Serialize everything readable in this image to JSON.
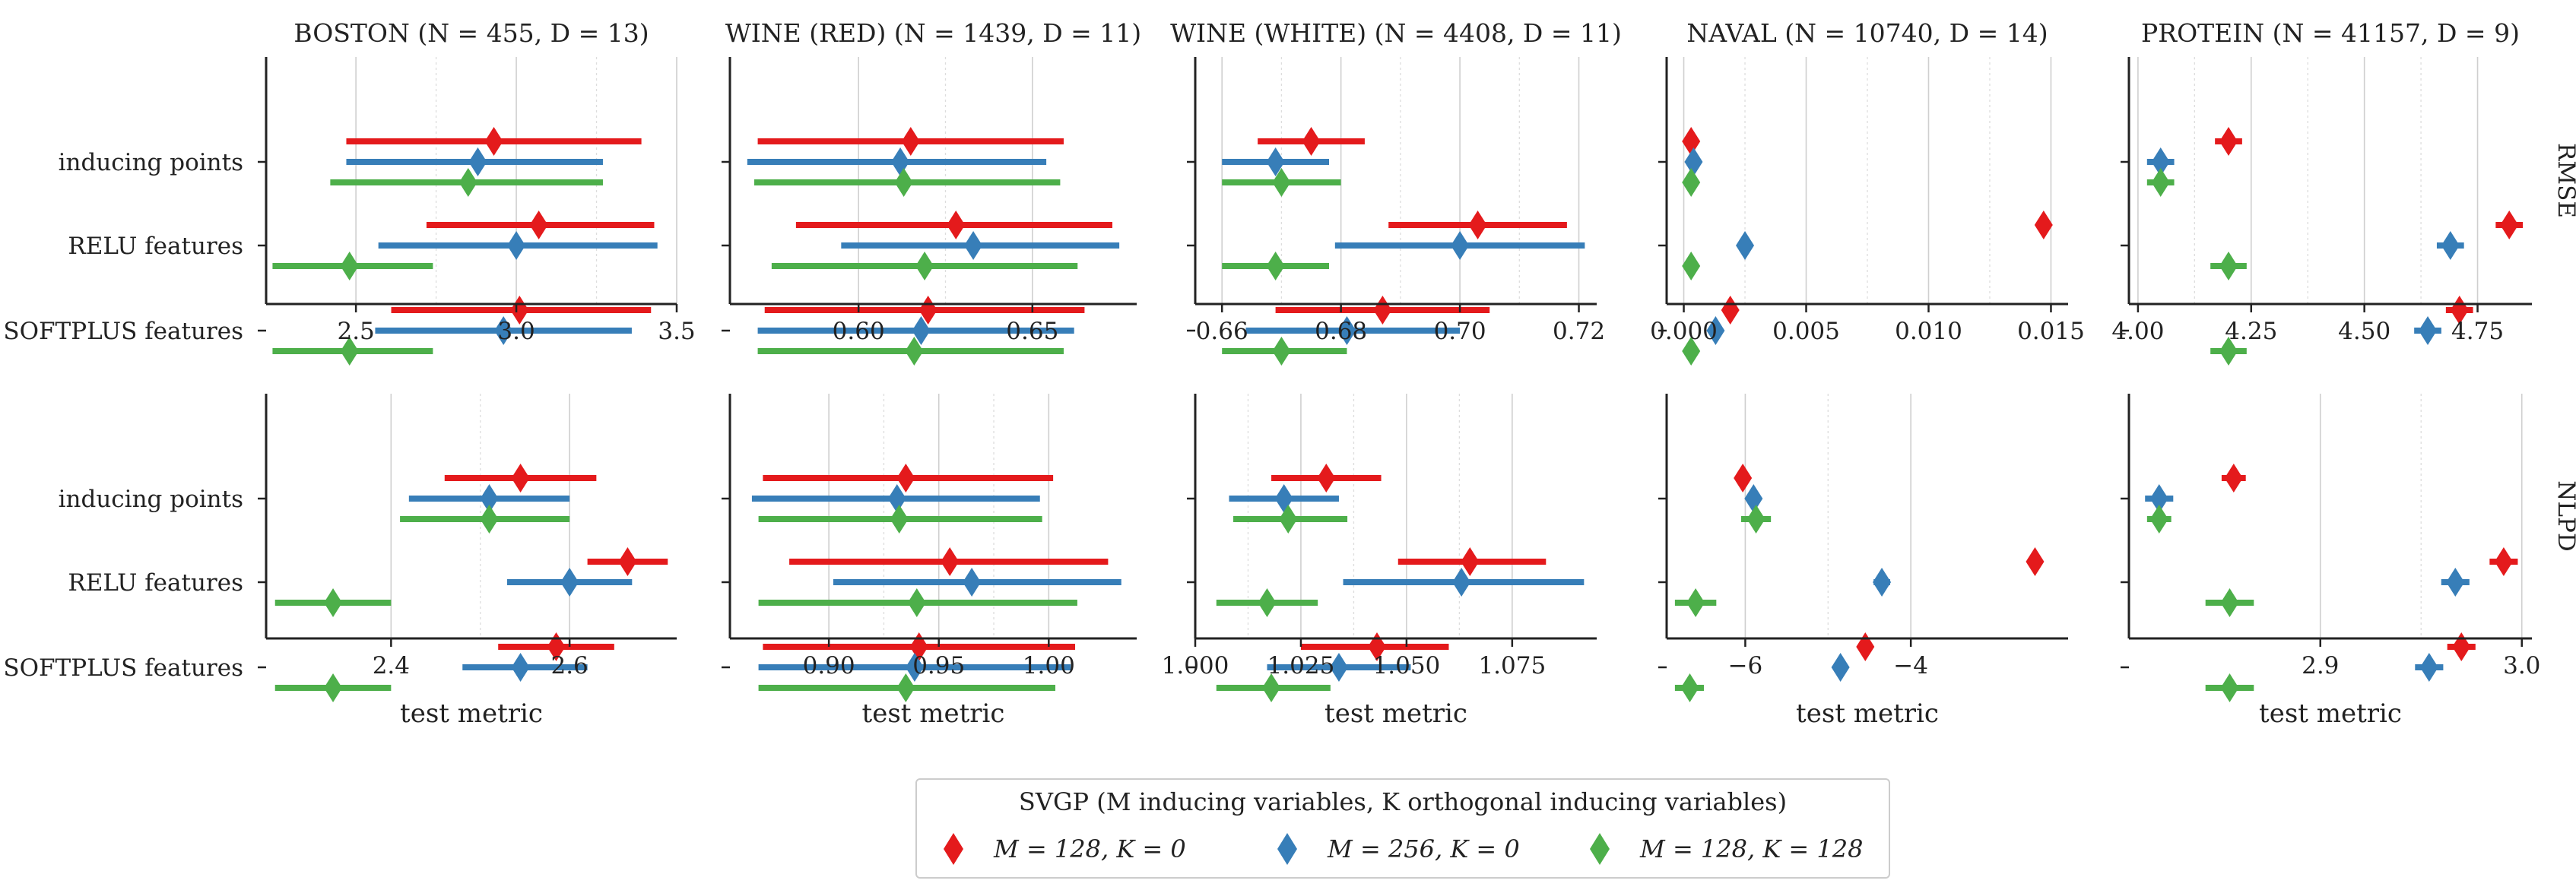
{
  "figure": {
    "row_labels": [
      "RMSE",
      "NLPD"
    ],
    "y_categories": [
      "inducing points",
      "RELU features",
      "SOFTPLUS features"
    ],
    "x_axis_label": "test metric",
    "legend_title": "SVGP (M inducing variables, K orthogonal inducing variables)",
    "legend_entries": [
      "M = 128, K = 0",
      "M = 256, K = 0",
      "M = 128, K = 128"
    ],
    "colors": {
      "red": "#e41a1c",
      "blue": "#377eb8",
      "green": "#4daf4a"
    }
  },
  "chart_data": [
    {
      "type": "errorbar",
      "dataset": "BOSTON",
      "title": "BOSTON (N = 455, D = 13)",
      "metric": "RMSE",
      "xlim": [
        2.22,
        3.5
      ],
      "xticks": [
        2.5,
        3.0,
        3.5
      ],
      "xtick_labels": [
        "2.5",
        "3.0",
        "3.5"
      ],
      "series": [
        {
          "name": "M = 128, K = 0",
          "color": "#e41a1c",
          "centers": [
            2.93,
            3.07,
            3.01
          ],
          "lower": [
            2.47,
            2.72,
            2.61
          ],
          "upper": [
            3.39,
            3.43,
            3.42
          ]
        },
        {
          "name": "M = 256, K = 0",
          "color": "#377eb8",
          "centers": [
            2.88,
            3.0,
            2.96
          ],
          "lower": [
            2.47,
            2.57,
            2.56
          ],
          "upper": [
            3.27,
            3.44,
            3.36
          ]
        },
        {
          "name": "M = 128, K = 128",
          "color": "#4daf4a",
          "centers": [
            2.85,
            2.48,
            2.48
          ],
          "lower": [
            2.42,
            2.24,
            2.24
          ],
          "upper": [
            3.27,
            2.74,
            2.74
          ]
        }
      ]
    },
    {
      "type": "errorbar",
      "dataset": "WINE (RED)",
      "title": "WINE (RED) (N = 1439, D = 11)",
      "metric": "RMSE",
      "xlim": [
        0.563,
        0.68
      ],
      "xticks": [
        0.6,
        0.65
      ],
      "xtick_labels": [
        "0.60",
        "0.65"
      ],
      "series": [
        {
          "name": "M = 128, K = 0",
          "color": "#e41a1c",
          "centers": [
            0.615,
            0.628,
            0.62
          ],
          "lower": [
            0.571,
            0.582,
            0.573
          ],
          "upper": [
            0.659,
            0.673,
            0.665
          ]
        },
        {
          "name": "M = 256, K = 0",
          "color": "#377eb8",
          "centers": [
            0.612,
            0.633,
            0.618
          ],
          "lower": [
            0.568,
            0.595,
            0.571
          ],
          "upper": [
            0.654,
            0.675,
            0.662
          ]
        },
        {
          "name": "M = 128, K = 128",
          "color": "#4daf4a",
          "centers": [
            0.613,
            0.619,
            0.616
          ],
          "lower": [
            0.57,
            0.575,
            0.571
          ],
          "upper": [
            0.658,
            0.663,
            0.659
          ]
        }
      ]
    },
    {
      "type": "errorbar",
      "dataset": "WINE (WHITE)",
      "title": "WINE (WHITE) (N = 4408, D = 11)",
      "metric": "RMSE",
      "xlim": [
        0.6555,
        0.723
      ],
      "xticks": [
        0.66,
        0.68,
        0.7,
        0.72
      ],
      "xtick_labels": [
        "0.66",
        "0.68",
        "0.70",
        "0.72"
      ],
      "series": [
        {
          "name": "M = 128, K = 0",
          "color": "#e41a1c",
          "centers": [
            0.675,
            0.703,
            0.687
          ],
          "lower": [
            0.666,
            0.688,
            0.669
          ],
          "upper": [
            0.684,
            0.718,
            0.705
          ]
        },
        {
          "name": "M = 256, K = 0",
          "color": "#377eb8",
          "centers": [
            0.669,
            0.7,
            0.681
          ],
          "lower": [
            0.66,
            0.679,
            0.664
          ],
          "upper": [
            0.678,
            0.721,
            0.7
          ]
        },
        {
          "name": "M = 128, K = 128",
          "color": "#4daf4a",
          "centers": [
            0.67,
            0.669,
            0.67
          ],
          "lower": [
            0.66,
            0.66,
            0.66
          ],
          "upper": [
            0.68,
            0.678,
            0.681
          ]
        }
      ]
    },
    {
      "type": "errorbar",
      "dataset": "NAVAL",
      "title": "NAVAL (N = 10740, D = 14)",
      "metric": "RMSE",
      "xlim": [
        -0.0007,
        0.0157
      ],
      "xticks": [
        0.0,
        0.005,
        0.01,
        0.015
      ],
      "xtick_labels": [
        "0.000",
        "0.005",
        "0.010",
        "0.015"
      ],
      "series": [
        {
          "name": "M = 128, K = 0",
          "color": "#e41a1c",
          "centers": [
            0.0003,
            0.0147,
            0.0019
          ],
          "lower": [
            0.0003,
            0.0147,
            0.0019
          ],
          "upper": [
            0.0003,
            0.0147,
            0.0019
          ]
        },
        {
          "name": "M = 256, K = 0",
          "color": "#377eb8",
          "centers": [
            0.0004,
            0.0025,
            0.0013
          ],
          "lower": [
            0.0004,
            0.0025,
            0.0013
          ],
          "upper": [
            0.0004,
            0.0025,
            0.0013
          ]
        },
        {
          "name": "M = 128, K = 128",
          "color": "#4daf4a",
          "centers": [
            0.0003,
            0.0003,
            0.0003
          ],
          "lower": [
            0.0003,
            0.0003,
            0.0003
          ],
          "upper": [
            0.0003,
            0.0003,
            0.0003
          ]
        }
      ]
    },
    {
      "type": "errorbar",
      "dataset": "PROTEIN",
      "title": "PROTEIN (N = 41157, D = 9)",
      "metric": "RMSE",
      "xlim": [
        3.98,
        4.87
      ],
      "xticks": [
        4.0,
        4.25,
        4.5,
        4.75
      ],
      "xtick_labels": [
        "4.00",
        "4.25",
        "4.50",
        "4.75"
      ],
      "series": [
        {
          "name": "M = 128, K = 0",
          "color": "#e41a1c",
          "centers": [
            4.2,
            4.82,
            4.71
          ],
          "lower": [
            4.17,
            4.79,
            4.68
          ],
          "upper": [
            4.23,
            4.85,
            4.74
          ]
        },
        {
          "name": "M = 256, K = 0",
          "color": "#377eb8",
          "centers": [
            4.05,
            4.69,
            4.64
          ],
          "lower": [
            4.02,
            4.66,
            4.61
          ],
          "upper": [
            4.08,
            4.72,
            4.67
          ]
        },
        {
          "name": "M = 128, K = 128",
          "color": "#4daf4a",
          "centers": [
            4.05,
            4.2,
            4.2
          ],
          "lower": [
            4.02,
            4.16,
            4.16
          ],
          "upper": [
            4.08,
            4.24,
            4.24
          ]
        }
      ]
    },
    {
      "type": "errorbar",
      "dataset": "BOSTON",
      "title": "",
      "metric": "NLPD",
      "xlim": [
        2.26,
        2.72
      ],
      "xticks": [
        2.4,
        2.6
      ],
      "xtick_labels": [
        "2.4",
        "2.6"
      ],
      "series": [
        {
          "name": "M = 128, K = 0",
          "color": "#e41a1c",
          "centers": [
            2.545,
            2.665,
            2.585
          ],
          "lower": [
            2.46,
            2.62,
            2.52
          ],
          "upper": [
            2.63,
            2.71,
            2.65
          ]
        },
        {
          "name": "M = 256, K = 0",
          "color": "#377eb8",
          "centers": [
            2.51,
            2.6,
            2.545
          ],
          "lower": [
            2.42,
            2.53,
            2.48
          ],
          "upper": [
            2.6,
            2.67,
            2.62
          ]
        },
        {
          "name": "M = 128, K = 128",
          "color": "#4daf4a",
          "centers": [
            2.51,
            2.335,
            2.335
          ],
          "lower": [
            2.41,
            2.27,
            2.27
          ],
          "upper": [
            2.6,
            2.4,
            2.4
          ]
        }
      ]
    },
    {
      "type": "errorbar",
      "dataset": "WINE (RED)",
      "title": "",
      "metric": "NLPD",
      "xlim": [
        0.855,
        1.04
      ],
      "xticks": [
        0.9,
        0.95,
        1.0
      ],
      "xtick_labels": [
        "0.90",
        "0.95",
        "1.00"
      ],
      "series": [
        {
          "name": "M = 128, K = 0",
          "color": "#e41a1c",
          "centers": [
            0.935,
            0.955,
            0.941
          ],
          "lower": [
            0.87,
            0.882,
            0.87
          ],
          "upper": [
            1.002,
            1.027,
            1.012
          ]
        },
        {
          "name": "M = 256, K = 0",
          "color": "#377eb8",
          "centers": [
            0.931,
            0.965,
            0.939
          ],
          "lower": [
            0.865,
            0.902,
            0.868
          ],
          "upper": [
            0.996,
            1.033,
            1.01
          ]
        },
        {
          "name": "M = 128, K = 128",
          "color": "#4daf4a",
          "centers": [
            0.932,
            0.94,
            0.935
          ],
          "lower": [
            0.868,
            0.868,
            0.868
          ],
          "upper": [
            0.997,
            1.013,
            1.003
          ]
        }
      ]
    },
    {
      "type": "errorbar",
      "dataset": "WINE (WHITE)",
      "title": "",
      "metric": "NLPD",
      "xlim": [
        1.0,
        1.095
      ],
      "xticks": [
        1.0,
        1.025,
        1.05,
        1.075
      ],
      "xtick_labels": [
        "1.000",
        "1.025",
        "1.050",
        "1.075"
      ],
      "series": [
        {
          "name": "M = 128, K = 0",
          "color": "#e41a1c",
          "centers": [
            1.031,
            1.065,
            1.043
          ],
          "lower": [
            1.018,
            1.048,
            1.025
          ],
          "upper": [
            1.044,
            1.083,
            1.06
          ]
        },
        {
          "name": "M = 256, K = 0",
          "color": "#377eb8",
          "centers": [
            1.021,
            1.063,
            1.034
          ],
          "lower": [
            1.008,
            1.035,
            1.017
          ],
          "upper": [
            1.034,
            1.092,
            1.051
          ]
        },
        {
          "name": "M = 128, K = 128",
          "color": "#4daf4a",
          "centers": [
            1.022,
            1.017,
            1.018
          ],
          "lower": [
            1.009,
            1.005,
            1.005
          ],
          "upper": [
            1.036,
            1.029,
            1.032
          ]
        }
      ]
    },
    {
      "type": "errorbar",
      "dataset": "NAVAL",
      "title": "",
      "metric": "NLPD",
      "xlim": [
        -6.95,
        -2.1
      ],
      "xticks": [
        -6,
        -4
      ],
      "xtick_labels": [
        "−6",
        "−4"
      ],
      "series": [
        {
          "name": "M = 128, K = 0",
          "color": "#e41a1c",
          "centers": [
            -6.03,
            -2.5,
            -4.55
          ],
          "lower": [
            -6.08,
            -2.5,
            -4.6
          ],
          "upper": [
            -5.98,
            -2.5,
            -4.5
          ]
        },
        {
          "name": "M = 256, K = 0",
          "color": "#377eb8",
          "centers": [
            -5.9,
            -4.35,
            -4.85
          ],
          "lower": [
            -5.95,
            -4.45,
            -4.9
          ],
          "upper": [
            -5.85,
            -4.25,
            -4.8
          ]
        },
        {
          "name": "M = 128, K = 128",
          "color": "#4daf4a",
          "centers": [
            -5.87,
            -6.6,
            -6.67
          ],
          "lower": [
            -6.05,
            -6.85,
            -6.85
          ],
          "upper": [
            -5.69,
            -6.35,
            -6.5
          ]
        }
      ]
    },
    {
      "type": "errorbar",
      "dataset": "PROTEIN",
      "title": "",
      "metric": "NLPD",
      "xlim": [
        2.805,
        3.005
      ],
      "xticks": [
        2.9,
        3.0
      ],
      "xtick_labels": [
        "2.9",
        "3.0"
      ],
      "series": [
        {
          "name": "M = 128, K = 0",
          "color": "#e41a1c",
          "centers": [
            2.857,
            2.991,
            2.97
          ],
          "lower": [
            2.851,
            2.984,
            2.963
          ],
          "upper": [
            2.863,
            2.998,
            2.977
          ]
        },
        {
          "name": "M = 256, K = 0",
          "color": "#377eb8",
          "centers": [
            2.82,
            2.967,
            2.954
          ],
          "lower": [
            2.813,
            2.96,
            2.947
          ],
          "upper": [
            2.827,
            2.974,
            2.961
          ]
        },
        {
          "name": "M = 128, K = 128",
          "color": "#4daf4a",
          "centers": [
            2.82,
            2.855,
            2.855
          ],
          "lower": [
            2.814,
            2.843,
            2.843
          ],
          "upper": [
            2.826,
            2.867,
            2.867
          ]
        }
      ]
    }
  ]
}
